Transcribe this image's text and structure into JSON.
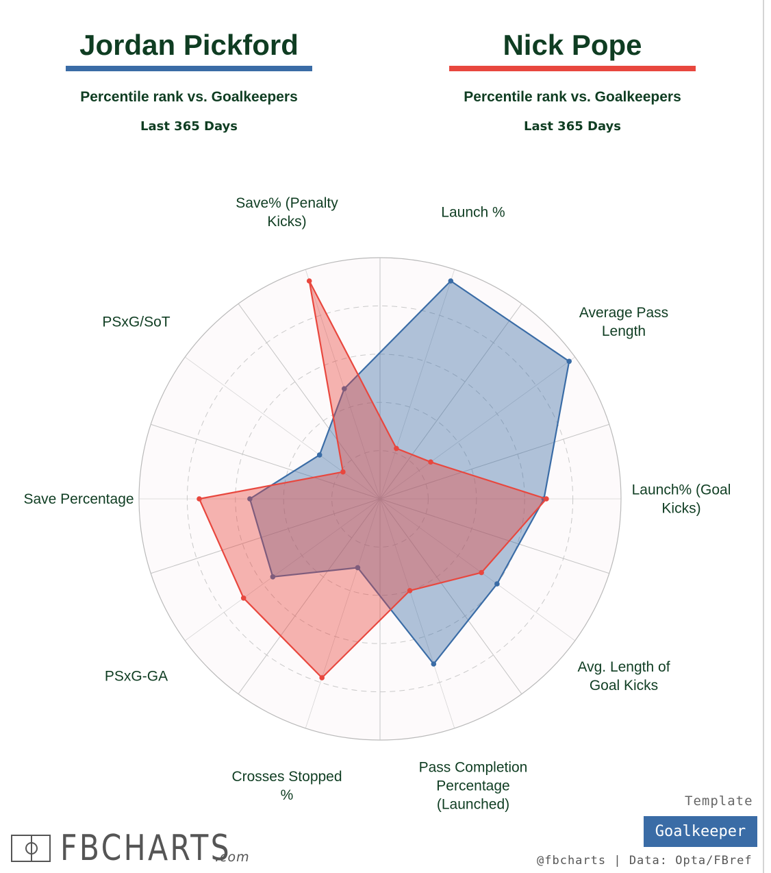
{
  "players": [
    {
      "name": "Jordan Pickford",
      "color": "#3a6ca6",
      "subtitle": "Percentile rank vs. Goalkeepers",
      "period": "Last 365 Days"
    },
    {
      "name": "Nick Pope",
      "color": "#e8473e",
      "subtitle": "Percentile rank vs. Goalkeepers",
      "period": "Last 365 Days"
    }
  ],
  "chart_data": {
    "type": "radar",
    "title": "",
    "range": [
      0,
      100
    ],
    "grid": true,
    "axes": [
      "Launch %",
      "Average Pass Length",
      "Launch% (Goal Kicks)",
      "Avg. Length of Goal Kicks",
      "Pass Completion Percentage (Launched)",
      "Crosses Stopped %",
      "PSxG-GA",
      "Save Percentage",
      "PSxG/SoT",
      "Save% (Penalty Kicks)"
    ],
    "series": [
      {
        "name": "Jordan Pickford",
        "color": "#3a6ca6",
        "values": [
          95,
          97,
          68,
          60,
          72,
          30,
          55,
          54,
          31,
          48
        ]
      },
      {
        "name": "Nick Pope",
        "color": "#e8473e",
        "values": [
          22,
          26,
          69,
          52,
          40,
          78,
          70,
          75,
          19,
          95
        ]
      }
    ]
  },
  "template": {
    "caption": "Template",
    "label": "Goalkeeper",
    "badge_color": "#3a6ca6"
  },
  "footer": {
    "credit": "@fbcharts | Data: Opta/FBref"
  },
  "logo": {
    "wordmark": "FBCHARTS",
    "suffix": ".com"
  }
}
